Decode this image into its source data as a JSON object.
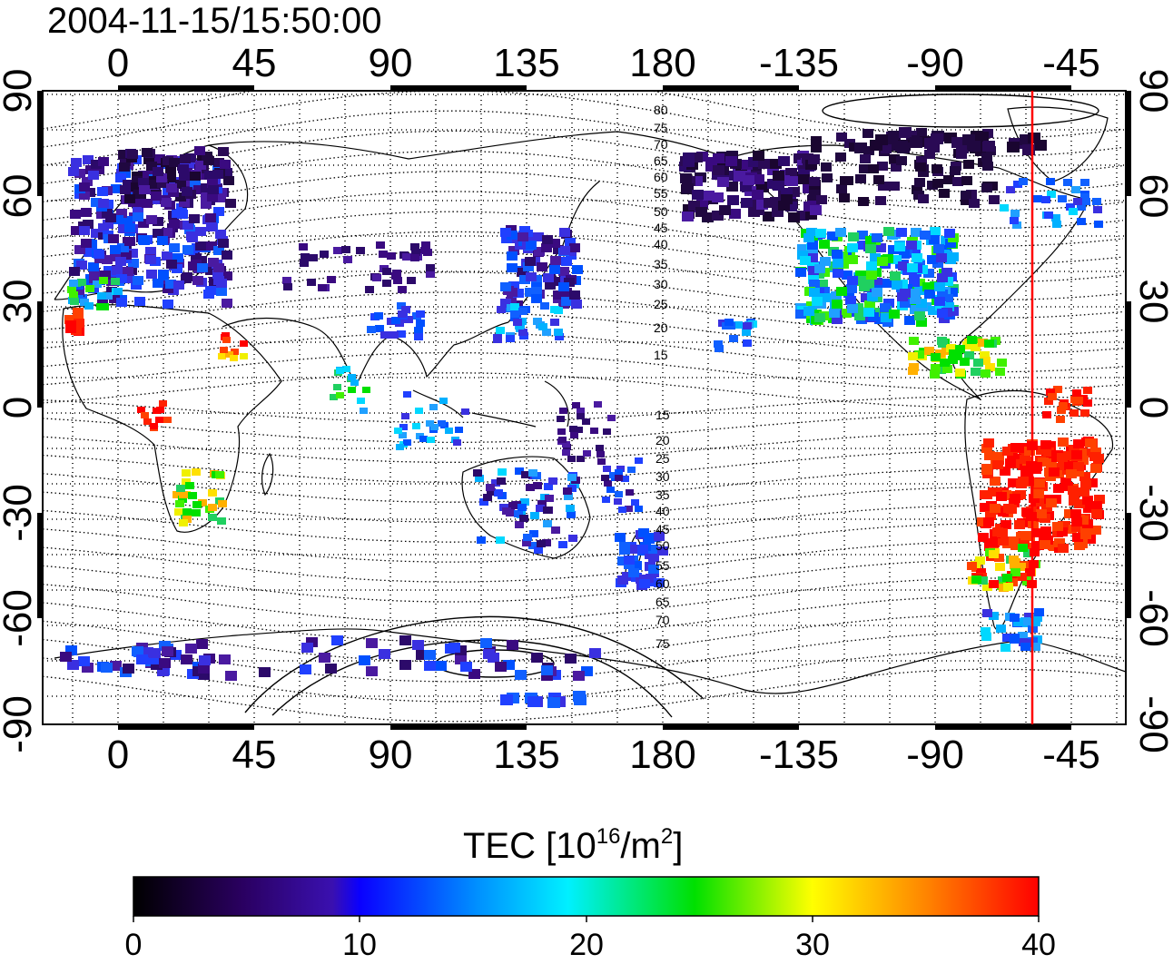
{
  "timestamp": "2004-11-15/15:50:00",
  "lon_tick_labels": [
    "0",
    "45",
    "90",
    "135",
    "180",
    "-135",
    "-90",
    "-45"
  ],
  "lat_tick_labels": [
    "90",
    "60",
    "30",
    "0",
    "-30",
    "-60",
    "-90"
  ],
  "contour_labels_north": [
    "80",
    "75",
    "70",
    "65",
    "60",
    "55",
    "50",
    "45",
    "40",
    "35",
    "30",
    "25",
    "20",
    "15"
  ],
  "contour_labels_south": [
    "15",
    "20",
    "25",
    "30",
    "35",
    "40",
    "45",
    "50",
    "55",
    "60",
    "65",
    "70",
    "75"
  ],
  "colorbar": {
    "title_main": "TEC  [10",
    "title_sup1": "16",
    "title_mid": "/m",
    "title_sup2": "2",
    "title_end": "]",
    "tick_labels": [
      "0",
      "10",
      "20",
      "30",
      "40"
    ],
    "range": [
      0,
      40
    ]
  },
  "colors": {
    "terminator_line": "#ff0000",
    "frame": "#000000"
  }
}
